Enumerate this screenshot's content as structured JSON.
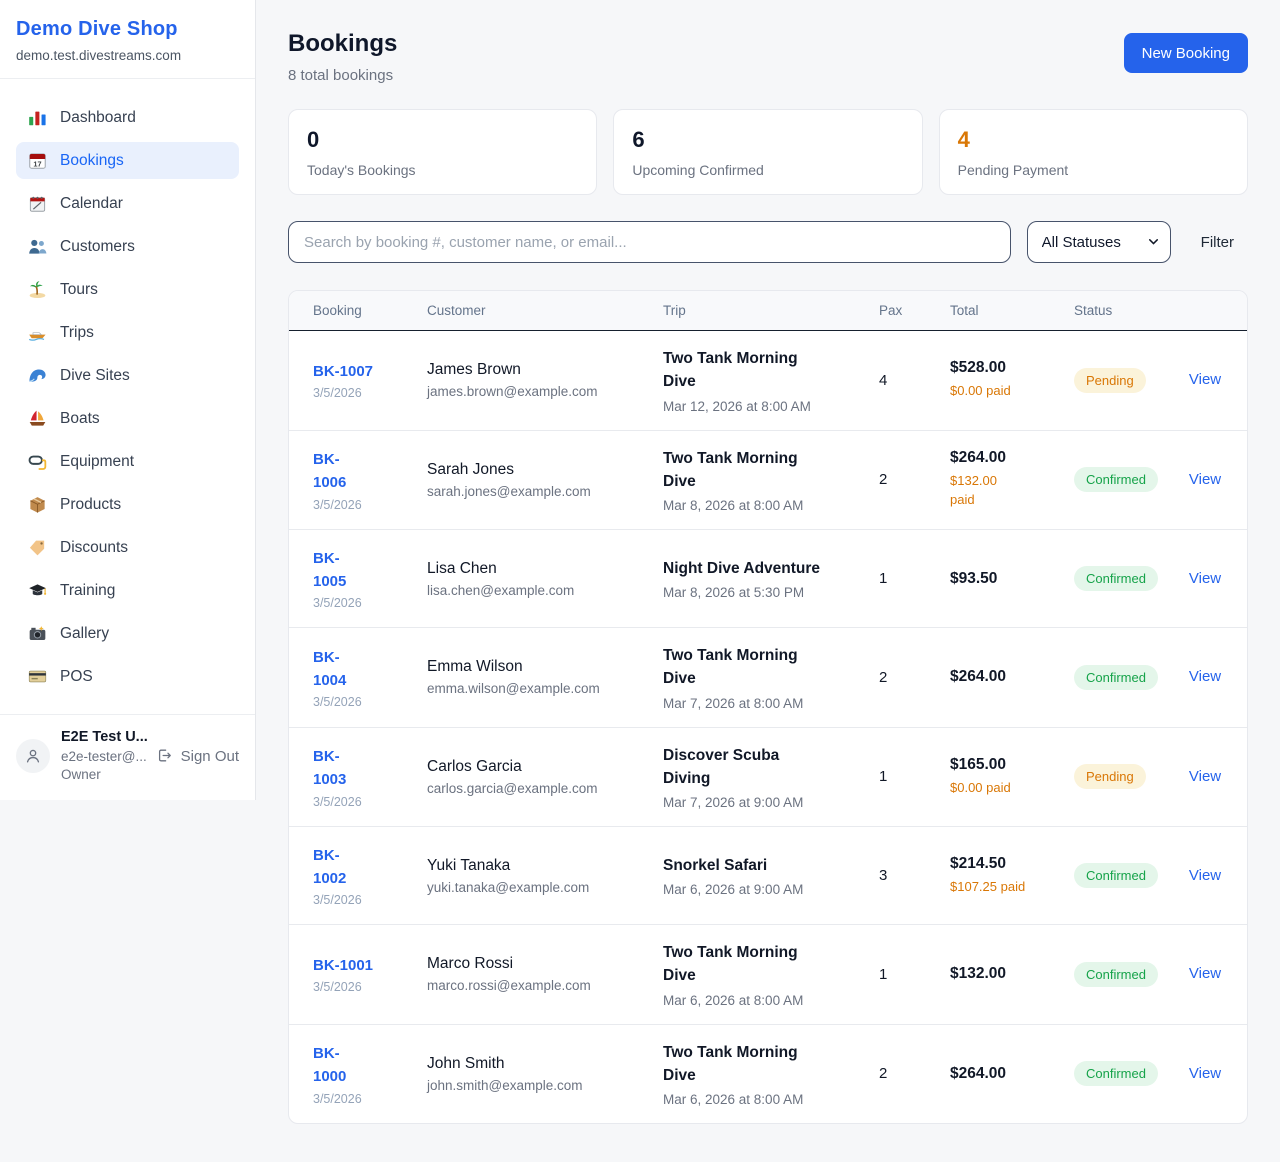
{
  "sidebar": {
    "title": "Demo Dive Shop",
    "domain": "demo.test.divestreams.com",
    "items": [
      {
        "label": "Dashboard",
        "icon": "bar-chart-icon",
        "active": false
      },
      {
        "label": "Bookings",
        "icon": "calendar-date-icon",
        "active": true
      },
      {
        "label": "Calendar",
        "icon": "spiral-calendar-icon",
        "active": false
      },
      {
        "label": "Customers",
        "icon": "people-icon",
        "active": false
      },
      {
        "label": "Tours",
        "icon": "island-icon",
        "active": false
      },
      {
        "label": "Trips",
        "icon": "speedboat-icon",
        "active": false
      },
      {
        "label": "Dive Sites",
        "icon": "wave-icon",
        "active": false
      },
      {
        "label": "Boats",
        "icon": "sailboat-icon",
        "active": false
      },
      {
        "label": "Equipment",
        "icon": "diving-mask-icon",
        "active": false
      },
      {
        "label": "Products",
        "icon": "package-icon",
        "active": false
      },
      {
        "label": "Discounts",
        "icon": "tag-icon",
        "active": false
      },
      {
        "label": "Training",
        "icon": "graduation-cap-icon",
        "active": false
      },
      {
        "label": "Gallery",
        "icon": "camera-icon",
        "active": false
      },
      {
        "label": "POS",
        "icon": "credit-card-icon",
        "active": false
      }
    ],
    "user": {
      "name": "E2E Test U...",
      "email": "e2e-tester@...",
      "role": "Owner",
      "signout_label": "Sign Out"
    }
  },
  "header": {
    "title": "Bookings",
    "subtitle": "8 total bookings",
    "new_booking_label": "New Booking"
  },
  "stats": [
    {
      "value": "0",
      "label": "Today's Bookings",
      "color": "dark"
    },
    {
      "value": "6",
      "label": "Upcoming Confirmed",
      "color": "dark"
    },
    {
      "value": "4",
      "label": "Pending Payment",
      "color": "orange"
    }
  ],
  "filters": {
    "search_placeholder": "Search by booking #, customer name, or email...",
    "status_selected": "All Statuses",
    "filter_label": "Filter"
  },
  "table": {
    "columns": [
      "Booking",
      "Customer",
      "Trip",
      "Pax",
      "Total",
      "Status",
      ""
    ],
    "action_label": "View",
    "rows": [
      {
        "id_lines": [
          "BK-1007"
        ],
        "date": "3/5/2026",
        "customer_name": "James Brown",
        "customer_email": "james.brown@example.com",
        "trip_lines": [
          "Two Tank Morning",
          "Dive"
        ],
        "trip_when": "Mar 12, 2026 at 8:00 AM",
        "pax": "4",
        "total": "$528.00",
        "paid_lines": [
          "$0.00 paid"
        ],
        "status": "Pending",
        "status_type": "pending"
      },
      {
        "id_lines": [
          "BK-",
          "1006"
        ],
        "date": "3/5/2026",
        "customer_name": "Sarah Jones",
        "customer_email": "sarah.jones@example.com",
        "trip_lines": [
          "Two Tank Morning",
          "Dive"
        ],
        "trip_when": "Mar 8, 2026 at 8:00 AM",
        "pax": "2",
        "total": "$264.00",
        "paid_lines": [
          "$132.00",
          "paid"
        ],
        "status": "Confirmed",
        "status_type": "confirmed"
      },
      {
        "id_lines": [
          "BK-",
          "1005"
        ],
        "date": "3/5/2026",
        "customer_name": "Lisa Chen",
        "customer_email": "lisa.chen@example.com",
        "trip_lines": [
          "Night Dive Adventure"
        ],
        "trip_when": "Mar 8, 2026 at 5:30 PM",
        "pax": "1",
        "total": "$93.50",
        "paid_lines": [],
        "status": "Confirmed",
        "status_type": "confirmed"
      },
      {
        "id_lines": [
          "BK-",
          "1004"
        ],
        "date": "3/5/2026",
        "customer_name": "Emma Wilson",
        "customer_email": "emma.wilson@example.com",
        "trip_lines": [
          "Two Tank Morning",
          "Dive"
        ],
        "trip_when": "Mar 7, 2026 at 8:00 AM",
        "pax": "2",
        "total": "$264.00",
        "paid_lines": [],
        "status": "Confirmed",
        "status_type": "confirmed"
      },
      {
        "id_lines": [
          "BK-",
          "1003"
        ],
        "date": "3/5/2026",
        "customer_name": "Carlos Garcia",
        "customer_email": "carlos.garcia@example.com",
        "trip_lines": [
          "Discover Scuba",
          "Diving"
        ],
        "trip_when": "Mar 7, 2026 at 9:00 AM",
        "pax": "1",
        "total": "$165.00",
        "paid_lines": [
          "$0.00 paid"
        ],
        "status": "Pending",
        "status_type": "pending"
      },
      {
        "id_lines": [
          "BK-",
          "1002"
        ],
        "date": "3/5/2026",
        "customer_name": "Yuki Tanaka",
        "customer_email": "yuki.tanaka@example.com",
        "trip_lines": [
          "Snorkel Safari"
        ],
        "trip_when": "Mar 6, 2026 at 9:00 AM",
        "pax": "3",
        "total": "$214.50",
        "paid_lines": [
          "$107.25 paid"
        ],
        "status": "Confirmed",
        "status_type": "confirmed"
      },
      {
        "id_lines": [
          "BK-1001"
        ],
        "date": "3/5/2026",
        "customer_name": "Marco Rossi",
        "customer_email": "marco.rossi@example.com",
        "trip_lines": [
          "Two Tank Morning",
          "Dive"
        ],
        "trip_when": "Mar 6, 2026 at 8:00 AM",
        "pax": "1",
        "total": "$132.00",
        "paid_lines": [],
        "status": "Confirmed",
        "status_type": "confirmed"
      },
      {
        "id_lines": [
          "BK-",
          "1000"
        ],
        "date": "3/5/2026",
        "customer_name": "John Smith",
        "customer_email": "john.smith@example.com",
        "trip_lines": [
          "Two Tank Morning",
          "Dive"
        ],
        "trip_when": "Mar 6, 2026 at 8:00 AM",
        "pax": "2",
        "total": "$264.00",
        "paid_lines": [],
        "status": "Confirmed",
        "status_type": "confirmed"
      }
    ]
  },
  "colors": {
    "accent": "#2563eb",
    "pending_text": "#d97706",
    "pending_bg": "#fbf3da",
    "confirmed_text": "#16a34a",
    "confirmed_bg": "#e4f6ea"
  }
}
